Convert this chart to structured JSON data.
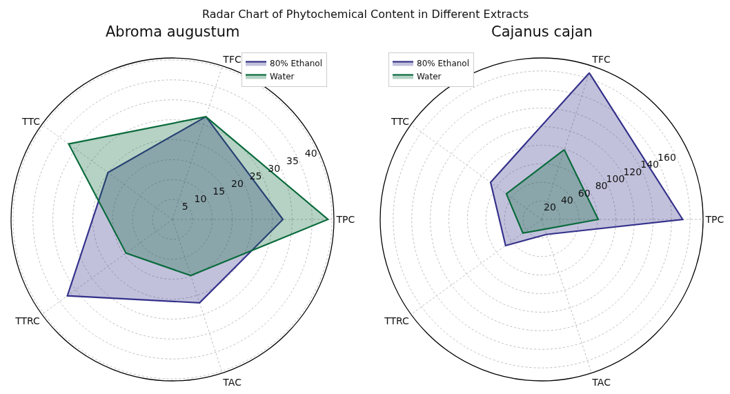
{
  "chart_data": [
    {
      "type": "radar",
      "title": "Abroma augustum",
      "annotations": [
        "Radar Chart of Phytochemical Content in Different Extracts"
      ],
      "categories": [
        "TFC",
        "TPC",
        "TAC",
        "TTRC",
        "TTC"
      ],
      "series": [
        {
          "name": "80% Ethanol",
          "color": "#34318a",
          "values": [
            27.1,
            27.7,
            22.0,
            32.6,
            20.0
          ]
        },
        {
          "name": "Water",
          "color": "#0a6b3c",
          "values": [
            27.1,
            39.0,
            14.8,
            14.4,
            32.2
          ]
        }
      ],
      "ylim": [
        0,
        40.5
      ],
      "yticks": [
        5,
        10,
        15,
        20,
        25,
        30,
        35,
        40
      ],
      "grid": true,
      "legend": "top right"
    },
    {
      "type": "radar",
      "title": "Cajanus cajan",
      "categories": [
        "TFC",
        "TPC",
        "TAC",
        "TTRC",
        "TTC"
      ],
      "series": [
        {
          "name": "80% Ethanol",
          "color": "#34318a",
          "values": [
            166,
            152,
            17,
            48,
            68
          ]
        },
        {
          "name": "Water",
          "color": "#0a6b3c",
          "values": [
            79,
            61,
            11,
            25,
            47
          ]
        }
      ],
      "ylim": [
        0,
        174
      ],
      "yticks": [
        20,
        40,
        60,
        80,
        100,
        120,
        140,
        160
      ],
      "grid": true,
      "legend": "top left"
    }
  ]
}
